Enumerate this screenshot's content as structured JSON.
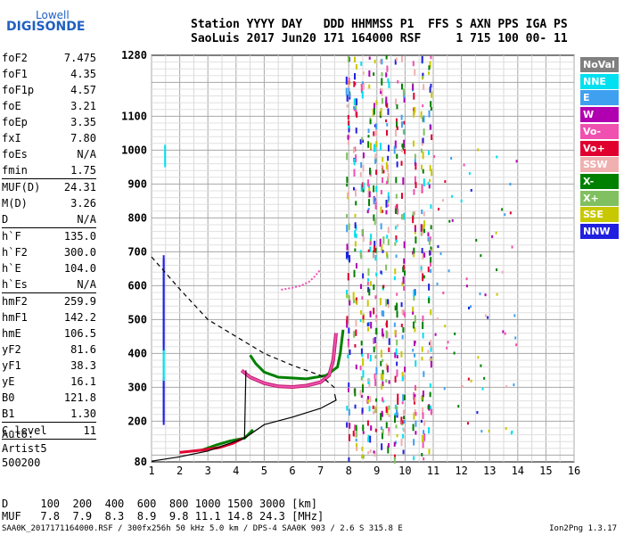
{
  "logo": {
    "line1": "Lowell",
    "line2": "DIGISONDE"
  },
  "header": {
    "line1": "Station YYYY DAY   DDD HHMMSS P1  FFS S AXN PPS IGA PS",
    "line2": "SaoLuis 2017 Jun20 171 164000 RSF     1 715 100 00- 11"
  },
  "params": [
    {
      "name": "foF2",
      "value": "7.475"
    },
    {
      "name": "foF1",
      "value": "4.35"
    },
    {
      "name": "foF1p",
      "value": "4.57"
    },
    {
      "name": "foE",
      "value": "3.21"
    },
    {
      "name": "foEp",
      "value": "3.35"
    },
    {
      "name": "fxI",
      "value": "7.80"
    },
    {
      "name": "foEs",
      "value": "N/A"
    },
    {
      "name": "fmin",
      "value": "1.75"
    },
    {
      "sep": true
    },
    {
      "name": "MUF(D)",
      "value": "24.31"
    },
    {
      "name": "M(D)",
      "value": "3.26"
    },
    {
      "name": "D",
      "value": "N/A"
    },
    {
      "sep": true
    },
    {
      "name": "h`F",
      "value": "135.0"
    },
    {
      "name": "h`F2",
      "value": "300.0"
    },
    {
      "name": "h`E",
      "value": "104.0"
    },
    {
      "name": "h`Es",
      "value": "N/A"
    },
    {
      "sep": true
    },
    {
      "name": "hmF2",
      "value": "259.9"
    },
    {
      "name": "hmF1",
      "value": "142.2"
    },
    {
      "name": "hmE",
      "value": "106.5"
    },
    {
      "name": "yF2",
      "value": "81.6"
    },
    {
      "name": "yF1",
      "value": "38.3"
    },
    {
      "name": "yE",
      "value": "16.1"
    },
    {
      "name": "B0",
      "value": "121.8"
    },
    {
      "name": "B1",
      "value": "1.30"
    },
    {
      "sep": true
    },
    {
      "name": "C-level",
      "value": "11"
    },
    {
      "sep": true
    }
  ],
  "notes": [
    "Auto:",
    "Artist5",
    "500200"
  ],
  "legend": [
    {
      "label": "NoVal",
      "color": "#808080"
    },
    {
      "label": "NNE",
      "color": "#00e0f0"
    },
    {
      "label": "E",
      "color": "#40a0f0"
    },
    {
      "label": "W",
      "color": "#b000b0"
    },
    {
      "label": "Vo-",
      "color": "#f050b0"
    },
    {
      "label": "Vo+",
      "color": "#e00030"
    },
    {
      "label": "SSW",
      "color": "#f0b0b0"
    },
    {
      "label": "X-",
      "color": "#008000"
    },
    {
      "label": "X+",
      "color": "#80c060"
    },
    {
      "label": "SSE",
      "color": "#c8c800"
    },
    {
      "label": "NNW",
      "color": "#2020e0"
    }
  ],
  "bottom": {
    "line1": "D     100  200  400  600  800 1000 1500 3000 [km]",
    "line2": "MUF   7.8  7.9  8.3  8.9  9.8 11.1 14.8 24.3 [MHz]"
  },
  "footer": {
    "left": "SAA0K_2017171164000.RSF / 300fx256h 50 kHz 5.0 km / DPS-4 SAA0K 903 / 2.6 S 315.8 E",
    "right": "Ion2Png 1.3.17"
  },
  "chart_data": {
    "type": "scatter",
    "x_ticks": [
      1,
      2,
      3,
      4,
      5,
      6,
      7,
      8,
      9,
      10,
      11,
      12,
      13,
      14,
      15,
      16
    ],
    "y_ticks": [
      80,
      200,
      300,
      400,
      500,
      600,
      700,
      800,
      900,
      1000,
      1100,
      1280
    ],
    "xlim": [
      1,
      16
    ],
    "ylim": [
      80,
      1280
    ],
    "grid": true,
    "traces": {
      "o_trace": [
        [
          4.2,
          350
        ],
        [
          4.5,
          330
        ],
        [
          5.0,
          312
        ],
        [
          5.5,
          303
        ],
        [
          6.0,
          301
        ],
        [
          6.5,
          305
        ],
        [
          7.0,
          315
        ],
        [
          7.3,
          335
        ],
        [
          7.45,
          380
        ],
        [
          7.55,
          460
        ]
      ],
      "x_trace": [
        [
          4.5,
          395
        ],
        [
          4.7,
          370
        ],
        [
          5.0,
          345
        ],
        [
          5.5,
          330
        ],
        [
          6.5,
          325
        ],
        [
          7.2,
          335
        ],
        [
          7.6,
          360
        ],
        [
          7.7,
          400
        ],
        [
          7.8,
          470
        ]
      ],
      "lower_layer": [
        [
          2.0,
          108
        ],
        [
          2.8,
          115
        ],
        [
          3.4,
          122
        ],
        [
          3.9,
          135
        ],
        [
          4.2,
          148
        ]
      ],
      "x_lower_layer": [
        [
          2.8,
          115
        ],
        [
          3.3,
          130
        ],
        [
          3.8,
          142
        ],
        [
          4.3,
          150
        ],
        [
          4.6,
          175
        ]
      ],
      "spread_f_region": [
        [
          5.6,
          588
        ],
        [
          6.0,
          594
        ],
        [
          6.3,
          600
        ],
        [
          6.6,
          612
        ],
        [
          6.8,
          628
        ],
        [
          7.0,
          648
        ]
      ],
      "profile_solid": [
        [
          1.0,
          82
        ],
        [
          2.0,
          95
        ],
        [
          3.0,
          112
        ],
        [
          4.3,
          150
        ],
        [
          5.0,
          190
        ],
        [
          6.0,
          212
        ],
        [
          7.0,
          238
        ],
        [
          7.55,
          262
        ],
        [
          7.5,
          280
        ]
      ],
      "profile_dashed": [
        [
          1.0,
          685
        ],
        [
          2.0,
          590
        ],
        [
          3.0,
          500
        ],
        [
          4.0,
          450
        ],
        [
          5.0,
          400
        ],
        [
          6.0,
          365
        ],
        [
          7.0,
          335
        ],
        [
          7.55,
          295
        ]
      ]
    }
  }
}
